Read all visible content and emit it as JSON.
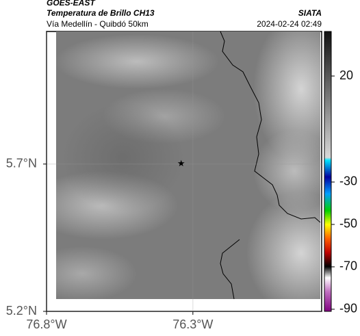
{
  "header": {
    "source": "GOES-EAST",
    "title": "Temperatura de Brillo CH13",
    "subtitle": "Vía Medellín - Quibdó 50km",
    "org": "SIATA",
    "datetime": "2024-02-24 02:49"
  },
  "map": {
    "xlim": [
      -76.8,
      -75.86
    ],
    "ylim": [
      5.2,
      6.15
    ],
    "xticks": [
      {
        "value": -76.8,
        "label": "76.8°W"
      },
      {
        "value": -76.3,
        "label": "76.3°W"
      }
    ],
    "yticks": [
      {
        "value": 5.7,
        "label": "5.7°N"
      },
      {
        "value": 5.2,
        "label": "5.2°N"
      }
    ],
    "marker": {
      "lon": -76.34,
      "lat": 5.7
    }
  },
  "colorbar": {
    "lim": [
      -91,
      41
    ],
    "ticks": [
      20,
      -30,
      -50,
      -70,
      -90
    ]
  }
}
